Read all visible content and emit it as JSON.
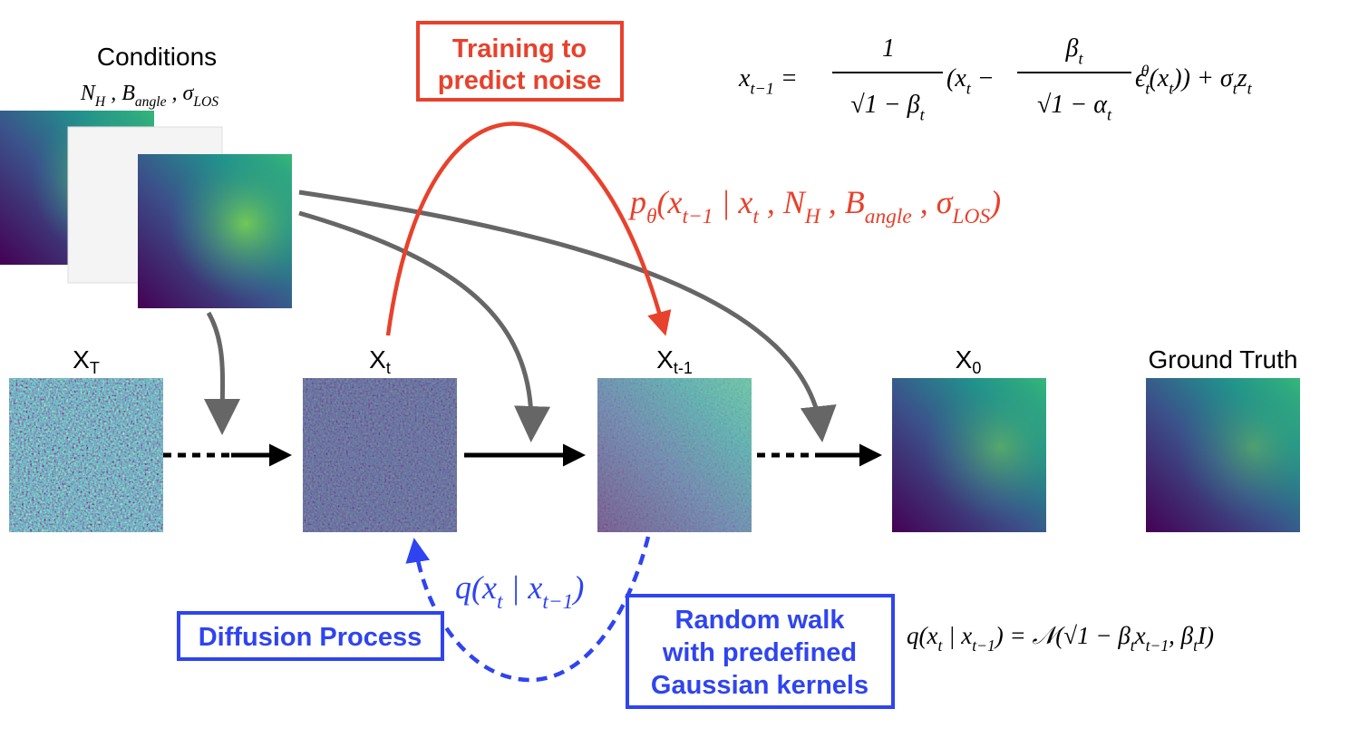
{
  "conditions": {
    "title": "Conditions",
    "variables": [
      {
        "t": "N"
      },
      {
        "sub": "H"
      },
      {
        "t": " , B"
      },
      {
        "sub": "angle"
      },
      {
        "t": " , σ"
      },
      {
        "sub": "LOS"
      }
    ]
  },
  "states": [
    {
      "base": "X",
      "sub": "T"
    },
    {
      "base": "X",
      "sub": "t"
    },
    {
      "base": "X",
      "sub": "t-1"
    },
    {
      "base": "X",
      "sub": "0"
    }
  ],
  "ground_truth": "Ground Truth",
  "training_box": [
    "Training to",
    "predict noise"
  ],
  "diffusion_box": "Diffusion Process",
  "random_walk_box": [
    "Random walk",
    "with predefined",
    "Gaussian kernels"
  ],
  "reverse_label": [
    {
      "t": "p"
    },
    {
      "sub": "θ"
    },
    {
      "t": "(x"
    },
    {
      "sub": "t−1"
    },
    {
      "t": " | x"
    },
    {
      "sub": "t"
    },
    {
      "t": " , N"
    },
    {
      "sub": "H"
    },
    {
      "t": " , B"
    },
    {
      "sub": "angle"
    },
    {
      "t": " , σ"
    },
    {
      "sub": "LOS"
    },
    {
      "t": ")"
    }
  ],
  "forward_label": [
    {
      "t": "q(x"
    },
    {
      "sub": "t"
    },
    {
      "t": " | x"
    },
    {
      "sub": "t−1"
    },
    {
      "t": ")"
    }
  ],
  "update_formula": {
    "lhs": [
      {
        "t": "x"
      },
      {
        "sub": "t−1"
      },
      {
        "t": " = "
      }
    ],
    "frac1_num": [
      {
        "t": "1"
      }
    ],
    "frac1_den": [
      {
        "t": "√1 − β"
      },
      {
        "sub": "t"
      }
    ],
    "mid": [
      {
        "t": "(x"
      },
      {
        "sub": "t"
      },
      {
        "t": " − "
      }
    ],
    "frac2_num": [
      {
        "t": "β"
      },
      {
        "sub": "t"
      }
    ],
    "frac2_den": [
      {
        "t": "√1 − α"
      },
      {
        "sub": "t"
      }
    ],
    "rhs": [
      {
        "t": "ϵ"
      },
      {
        "sub": "t"
      },
      {
        "sup": "θ"
      },
      {
        "t": "(x"
      },
      {
        "sub": "t"
      },
      {
        "t": ")) + σ"
      },
      {
        "sub": "t"
      },
      {
        "t": "z"
      },
      {
        "sub": "t"
      }
    ]
  },
  "kernel_formula": [
    {
      "t": "q(x"
    },
    {
      "sub": "t"
    },
    {
      "t": " | x"
    },
    {
      "sub": "t−1"
    },
    {
      "t": ") = 𝒩(√1 − β"
    },
    {
      "sub": "t"
    },
    {
      "t": "x"
    },
    {
      "sub": "t−1"
    },
    {
      "t": ", β"
    },
    {
      "sub": "t"
    },
    {
      "t": "I)"
    }
  ]
}
